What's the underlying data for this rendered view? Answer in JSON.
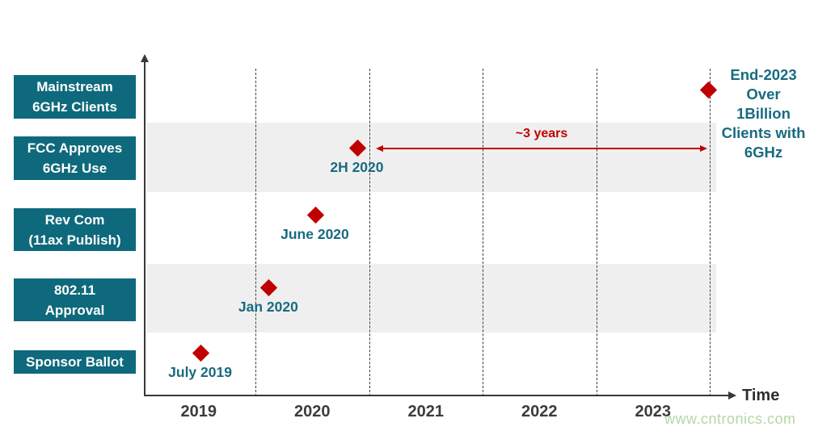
{
  "page": {
    "watermark": "www.cntronics.com"
  },
  "colors": {
    "category_box_teal": "#0e697c",
    "label_teal": "#186b81",
    "milestone_red": "#c00000",
    "band_gray": "#efefef",
    "axis_dark": "#383838",
    "watermark_green": "#b5d7a6"
  },
  "chart_data": {
    "type": "scatter",
    "title": "",
    "xlabel": "Time",
    "x_axis": {
      "label": "Time",
      "ticks": [
        "2019",
        "2020",
        "2021",
        "2022",
        "2023"
      ],
      "range_years": [
        2018.8,
        2024.2
      ],
      "gridlines": "dashed vertical at year boundaries"
    },
    "categories": [
      "Mainstream 6GHz Clients",
      "FCC Approves 6GHz Use",
      "Rev Com (11ax Publish)",
      "802.11 Approval",
      "Sponsor Ballot"
    ],
    "category_lines": [
      [
        "Mainstream",
        "6GHz Clients"
      ],
      [
        "FCC Approves",
        "6GHz Use"
      ],
      [
        "Rev Com",
        "(11ax Publish)"
      ],
      [
        "802.11",
        "Approval"
      ],
      [
        "Sponsor Ballot"
      ]
    ],
    "shaded_rows": [
      "FCC Approves 6GHz Use",
      "802.11 Approval"
    ],
    "milestones": [
      {
        "category": "Sponsor Ballot",
        "label": "July 2019",
        "year": 2019.52
      },
      {
        "category": "802.11 Approval",
        "label": "Jan 2020",
        "year": 2020.12
      },
      {
        "category": "Rev Com (11ax Publish)",
        "label": "June 2020",
        "year": 2020.53
      },
      {
        "category": "FCC Approves 6GHz Use",
        "label": "2H 2020",
        "year": 2020.9
      },
      {
        "category": "Mainstream 6GHz Clients",
        "label": "",
        "year": 2023.99
      }
    ],
    "annotation": {
      "label": "~3 years",
      "from_year": 2020.9,
      "to_year": 2023.99,
      "row": "FCC Approves 6GHz Use",
      "style": "double-headed red arrow"
    },
    "callout_lines": [
      "End-2023",
      "Over",
      "1Billion",
      "Clients with",
      "6GHz"
    ],
    "legend": "none"
  }
}
